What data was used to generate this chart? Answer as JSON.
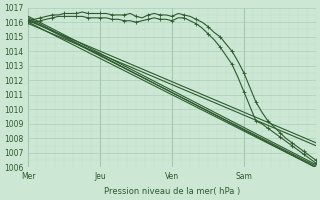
{
  "bg_color": "#cce8d4",
  "grid_major_color": "#aacfb8",
  "grid_minor_color": "#bdddc8",
  "line_color": "#2d5a2d",
  "xlabel": "Pression niveau de la mer( hPa )",
  "xtick_labels": [
    "Mer",
    "Jeu",
    "Ven",
    "Sam"
  ],
  "xtick_positions": [
    0,
    24,
    48,
    72
  ],
  "ylim": [
    1006,
    1017
  ],
  "yticks": [
    1006,
    1007,
    1008,
    1009,
    1010,
    1011,
    1012,
    1013,
    1014,
    1015,
    1016,
    1017
  ],
  "total_hours": 96,
  "series": [
    {
      "y0": 1016.2,
      "y1": 1006.1,
      "type": "linear"
    },
    {
      "y0": 1016.3,
      "y1": 1006.0,
      "type": "linear"
    },
    {
      "y0": 1016.0,
      "y1": 1006.0,
      "type": "linear"
    },
    {
      "y0": 1016.4,
      "y1": 1006.2,
      "type": "linear"
    },
    {
      "y0": 1015.9,
      "y1": 1007.5,
      "type": "linear"
    },
    {
      "y0": 1016.1,
      "y1": 1007.7,
      "type": "linear"
    },
    {
      "type": "marker_stay",
      "pts_x": [
        0,
        2,
        4,
        6,
        8,
        10,
        12,
        14,
        16,
        18,
        20,
        22,
        24,
        26,
        28,
        30,
        32,
        34,
        36,
        38,
        40,
        42,
        44,
        46,
        48,
        50,
        52,
        54,
        56,
        58,
        60,
        62,
        64,
        66,
        68,
        70,
        72,
        74,
        76,
        78,
        80,
        82,
        84,
        86,
        88,
        90,
        92,
        94,
        96
      ],
      "pts_y": [
        1016.1,
        1016.2,
        1016.3,
        1016.4,
        1016.5,
        1016.5,
        1016.6,
        1016.6,
        1016.6,
        1016.7,
        1016.6,
        1016.6,
        1016.6,
        1016.6,
        1016.5,
        1016.5,
        1016.5,
        1016.6,
        1016.4,
        1016.3,
        1016.5,
        1016.6,
        1016.5,
        1016.5,
        1016.4,
        1016.6,
        1016.5,
        1016.4,
        1016.2,
        1016.0,
        1015.7,
        1015.3,
        1015.0,
        1014.5,
        1014.0,
        1013.3,
        1012.5,
        1011.5,
        1010.5,
        1009.8,
        1009.2,
        1008.8,
        1008.4,
        1008.0,
        1007.7,
        1007.4,
        1007.1,
        1006.8,
        1006.5
      ]
    },
    {
      "type": "marker_drop",
      "pts_x": [
        0,
        2,
        4,
        6,
        8,
        10,
        12,
        14,
        16,
        18,
        20,
        22,
        24,
        26,
        28,
        30,
        32,
        34,
        36,
        38,
        40,
        42,
        44,
        46,
        48,
        50,
        52,
        54,
        56,
        58,
        60,
        62,
        64,
        66,
        68,
        70,
        72,
        74,
        76,
        78,
        80,
        82,
        84,
        86,
        88,
        90,
        92,
        94,
        96
      ],
      "pts_y": [
        1016.0,
        1016.0,
        1016.1,
        1016.2,
        1016.3,
        1016.4,
        1016.4,
        1016.4,
        1016.4,
        1016.4,
        1016.3,
        1016.3,
        1016.3,
        1016.3,
        1016.2,
        1016.2,
        1016.1,
        1016.1,
        1016.0,
        1016.1,
        1016.2,
        1016.3,
        1016.2,
        1016.2,
        1016.1,
        1016.3,
        1016.3,
        1016.1,
        1015.9,
        1015.6,
        1015.2,
        1014.8,
        1014.3,
        1013.7,
        1013.1,
        1012.2,
        1011.2,
        1010.2,
        1009.2,
        1009.0,
        1008.7,
        1008.4,
        1008.1,
        1007.8,
        1007.5,
        1007.2,
        1006.9,
        1006.6,
        1006.3
      ]
    }
  ]
}
